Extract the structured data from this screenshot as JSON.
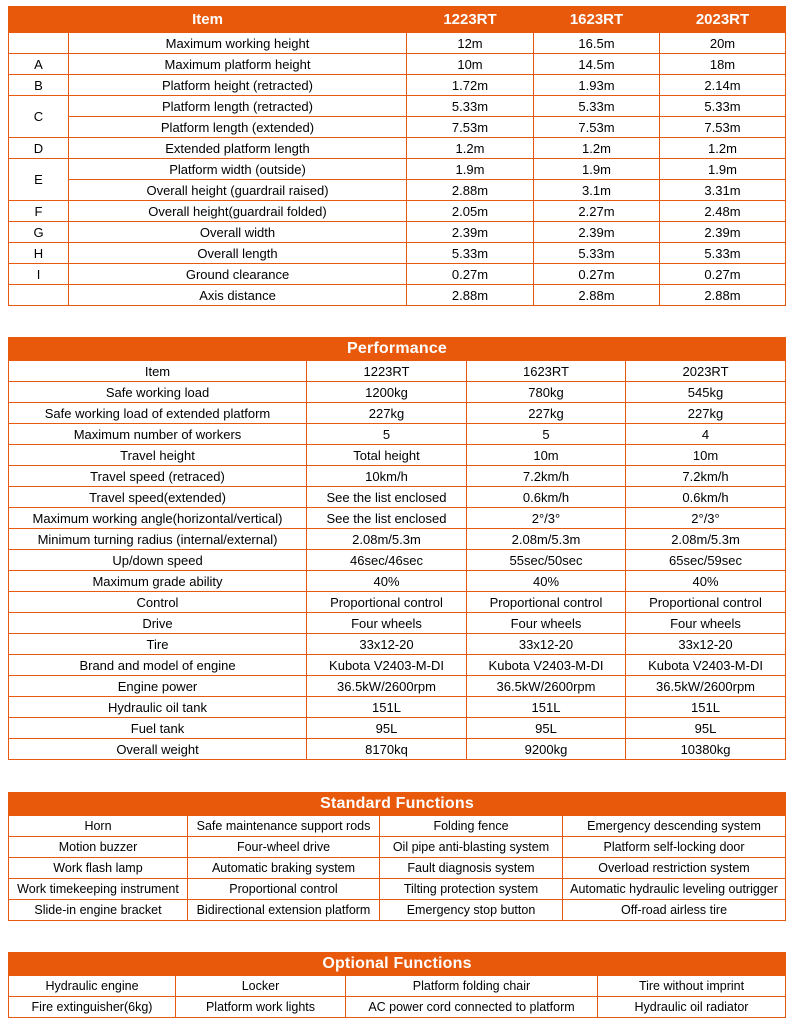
{
  "colors": {
    "accent": "#E8590C",
    "header_text": "#FFFFFF",
    "body_text": "#000000",
    "background": "#FFFFFF"
  },
  "dimensions": {
    "header_item": "Item",
    "models": [
      "1223RT",
      "1623RT",
      "2023RT"
    ],
    "rows": [
      {
        "letter": "",
        "span": 1,
        "label": "Maximum working height",
        "values": [
          "12m",
          "16.5m",
          "20m"
        ]
      },
      {
        "letter": "A",
        "span": 1,
        "label": "Maximum platform height",
        "values": [
          "10m",
          "14.5m",
          "18m"
        ]
      },
      {
        "letter": "B",
        "span": 1,
        "label": "Platform height (retracted)",
        "values": [
          "1.72m",
          "1.93m",
          "2.14m"
        ]
      },
      {
        "letter": "C",
        "span": 2,
        "label": "Platform length (retracted)",
        "values": [
          "5.33m",
          "5.33m",
          "5.33m"
        ]
      },
      {
        "letter": null,
        "label": "Platform length (extended)",
        "values": [
          "7.53m",
          "7.53m",
          "7.53m"
        ]
      },
      {
        "letter": "D",
        "span": 1,
        "label": "Extended platform length",
        "values": [
          "1.2m",
          "1.2m",
          "1.2m"
        ]
      },
      {
        "letter": "E",
        "span": 2,
        "label": "Platform width (outside)",
        "values": [
          "1.9m",
          "1.9m",
          "1.9m"
        ]
      },
      {
        "letter": null,
        "label": "Overall height (guardrail raised)",
        "values": [
          "2.88m",
          "3.1m",
          "3.31m"
        ]
      },
      {
        "letter": "F",
        "span": 1,
        "label": "Overall height(guardrail folded)",
        "values": [
          "2.05m",
          "2.27m",
          "2.48m"
        ]
      },
      {
        "letter": "G",
        "span": 1,
        "label": "Overall width",
        "values": [
          "2.39m",
          "2.39m",
          "2.39m"
        ]
      },
      {
        "letter": "H",
        "span": 1,
        "label": "Overall length",
        "values": [
          "5.33m",
          "5.33m",
          "5.33m"
        ]
      },
      {
        "letter": "I",
        "span": 1,
        "label": "Ground clearance",
        "values": [
          "0.27m",
          "0.27m",
          "0.27m"
        ]
      },
      {
        "letter": "",
        "span": 1,
        "label": "Axis distance",
        "values": [
          "2.88m",
          "2.88m",
          "2.88m"
        ]
      }
    ]
  },
  "performance": {
    "title": "Performance",
    "rows": [
      [
        "Item",
        "1223RT",
        "1623RT",
        "2023RT"
      ],
      [
        "Safe working load",
        "1200kg",
        "780kg",
        "545kg"
      ],
      [
        "Safe working load of extended platform",
        "227kg",
        "227kg",
        "227kg"
      ],
      [
        "Maximum number of workers",
        "5",
        "5",
        "4"
      ],
      [
        "Travel height",
        "Total height",
        "10m",
        "10m"
      ],
      [
        "Travel speed (retraced)",
        "10km/h",
        "7.2km/h",
        "7.2km/h"
      ],
      [
        "Travel speed(extended)",
        "See the list enclosed",
        "0.6km/h",
        "0.6km/h"
      ],
      [
        "Maximum working angle(horizontal/vertical)",
        "See the list enclosed",
        "2°/3°",
        "2°/3°"
      ],
      [
        "Minimum turning radius (internal/external)",
        "2.08m/5.3m",
        "2.08m/5.3m",
        "2.08m/5.3m"
      ],
      [
        "Up/down speed",
        "46sec/46sec",
        "55sec/50sec",
        "65sec/59sec"
      ],
      [
        "Maximum grade ability",
        "40%",
        "40%",
        "40%"
      ],
      [
        "Control",
        "Proportional control",
        "Proportional control",
        "Proportional control"
      ],
      [
        "Drive",
        "Four wheels",
        "Four wheels",
        "Four wheels"
      ],
      [
        "Tire",
        "33x12-20",
        "33x12-20",
        "33x12-20"
      ],
      [
        "Brand and model of engine",
        "Kubota V2403-M-DI",
        "Kubota V2403-M-DI",
        "Kubota V2403-M-DI"
      ],
      [
        "Engine power",
        "36.5kW/2600rpm",
        "36.5kW/2600rpm",
        "36.5kW/2600rpm"
      ],
      [
        "Hydraulic oil tank",
        "151L",
        "151L",
        "151L"
      ],
      [
        "Fuel tank",
        "95L",
        "95L",
        "95L"
      ],
      [
        "Overall weight",
        "8170kq",
        "9200kg",
        "10380kg"
      ]
    ]
  },
  "standard_functions": {
    "title": "Standard Functions",
    "rows": [
      [
        "Horn",
        "Safe maintenance support rods",
        "Folding fence",
        "Emergency descending system"
      ],
      [
        "Motion buzzer",
        "Four-wheel drive",
        "Oil pipe anti-blasting system",
        "Platform self-locking door"
      ],
      [
        "Work flash lamp",
        "Automatic braking system",
        "Fault diagnosis system",
        "Overload restriction system"
      ],
      [
        "Work timekeeping instrument",
        "Proportional control",
        "Tilting protection system",
        "Automatic hydraulic leveling outrigger"
      ],
      [
        "Slide-in engine bracket",
        "Bidirectional extension platform",
        "Emergency stop button",
        "Off-road airless tire"
      ]
    ]
  },
  "optional_functions": {
    "title": "Optional Functions",
    "rows": [
      [
        "Hydraulic engine",
        "Locker",
        "Platform folding chair",
        "Tire without imprint"
      ],
      [
        "Fire extinguisher(6kg)",
        "Platform work lights",
        "AC power cord connected to platform",
        "Hydraulic oil radiator"
      ]
    ]
  }
}
